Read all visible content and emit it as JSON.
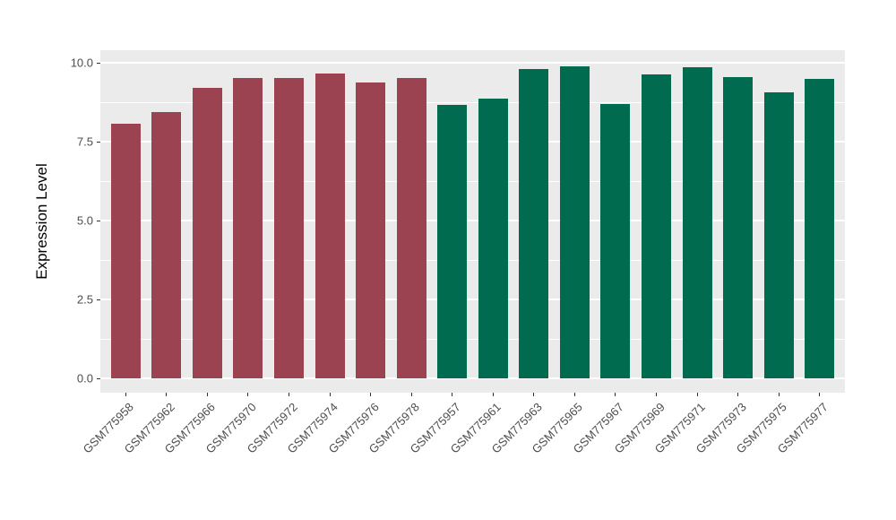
{
  "chart_data": {
    "type": "bar",
    "title": "",
    "xlabel": "",
    "ylabel": "Expression Level",
    "ylim": [
      0,
      10
    ],
    "yticks": [
      0.0,
      2.5,
      5.0,
      7.5,
      10.0
    ],
    "ytick_labels": [
      "0.0",
      "2.5",
      "5.0",
      "7.5",
      "10.0"
    ],
    "minor_gridlines": [
      1.25,
      3.75,
      6.25,
      8.75
    ],
    "grid": "on",
    "legend_position": "none",
    "categories": [
      "GSM775958",
      "GSM775962",
      "GSM775966",
      "GSM775970",
      "GSM775972",
      "GSM775974",
      "GSM775976",
      "GSM775978",
      "GSM775957",
      "GSM775961",
      "GSM775963",
      "GSM775965",
      "GSM775967",
      "GSM775969",
      "GSM775971",
      "GSM775973",
      "GSM775975",
      "GSM775977"
    ],
    "values": [
      8.07,
      8.45,
      9.21,
      9.52,
      9.53,
      9.67,
      9.38,
      9.52,
      8.67,
      8.86,
      9.79,
      9.9,
      8.69,
      9.62,
      9.87,
      9.56,
      9.07,
      9.48
    ],
    "color_group_index": [
      0,
      0,
      0,
      0,
      0,
      0,
      0,
      0,
      1,
      1,
      1,
      1,
      1,
      1,
      1,
      1,
      1,
      1
    ],
    "palette": [
      "#9C4351",
      "#006B4F"
    ]
  },
  "colors": {
    "figure_background": "#FFFFFF",
    "panel_background": "#EBEBEB",
    "gridline": "#FFFFFF",
    "tick_mark": "#333333",
    "tick_label_text": "#4D4D4D",
    "axis_title_text": "#000000"
  }
}
